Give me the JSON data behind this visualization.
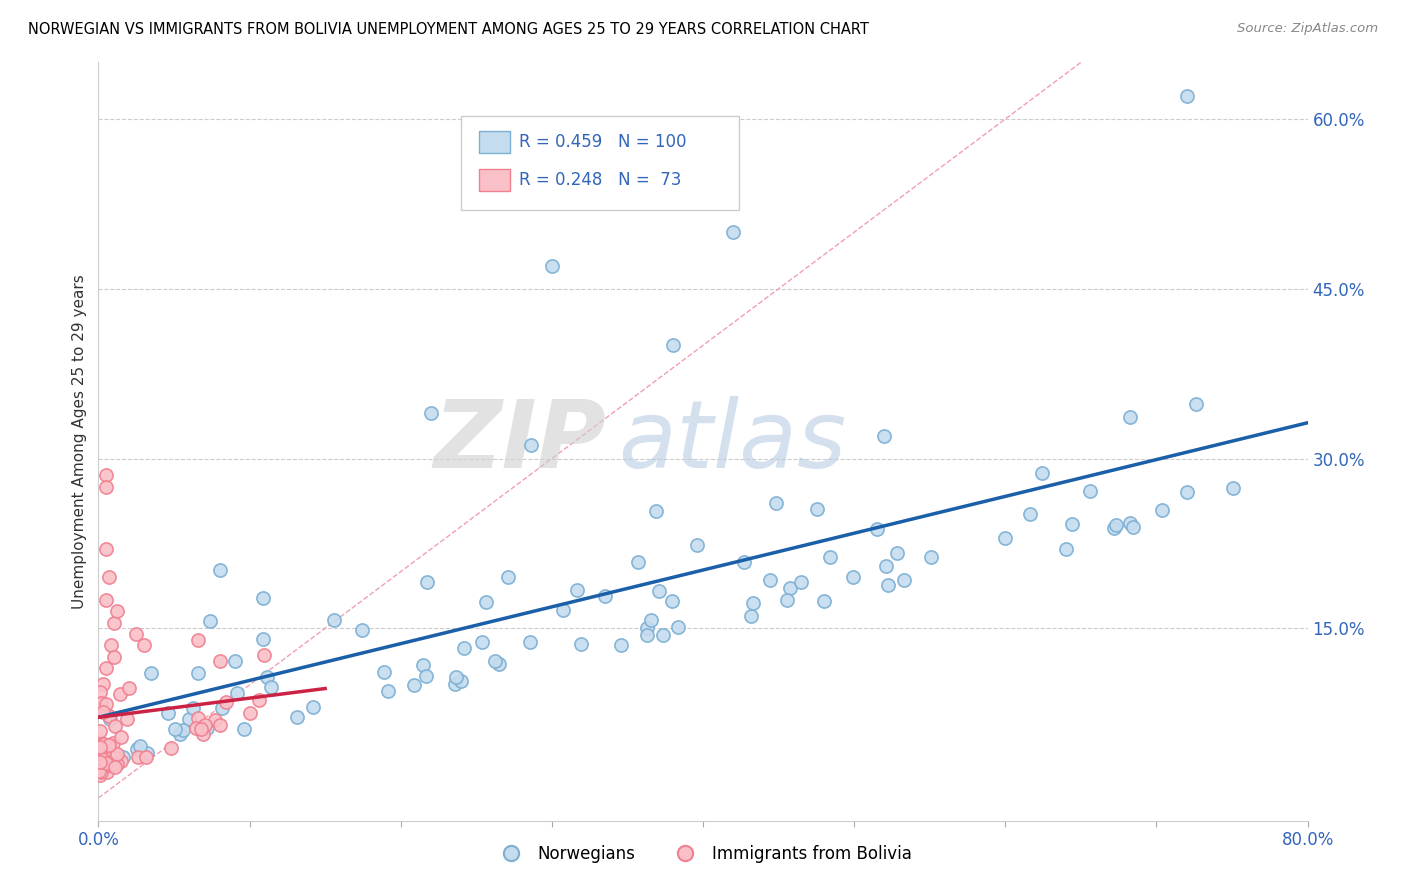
{
  "title": "NORWEGIAN VS IMMIGRANTS FROM BOLIVIA UNEMPLOYMENT AMONG AGES 25 TO 29 YEARS CORRELATION CHART",
  "source": "Source: ZipAtlas.com",
  "ylabel": "Unemployment Among Ages 25 to 29 years",
  "xlim": [
    0.0,
    0.8
  ],
  "ylim": [
    -0.02,
    0.65
  ],
  "xtick_positions": [
    0.0,
    0.8
  ],
  "xticklabels": [
    "0.0%",
    "80.0%"
  ],
  "ytick_positions": [
    0.15,
    0.3,
    0.45,
    0.6
  ],
  "yticklabels": [
    "15.0%",
    "30.0%",
    "45.0%",
    "60.0%"
  ],
  "norwegian_color": "#7bafd4",
  "norwegian_face": "#c5dcee",
  "bolivia_color": "#f08090",
  "bolivia_face": "#fac0c8",
  "trend_norwegian_color": "#1a5fa8",
  "trend_bolivia_color": "#cc2244",
  "diagonal_color": "#f0a0b0",
  "R_norwegian": 0.459,
  "N_norwegian": 100,
  "R_bolivia": 0.248,
  "N_bolivia": 73,
  "legend_labels": [
    "Norwegians",
    "Immigrants from Bolivia"
  ],
  "watermark_zip_color": "#d0d0d0",
  "watermark_atlas_color": "#b8cce4"
}
